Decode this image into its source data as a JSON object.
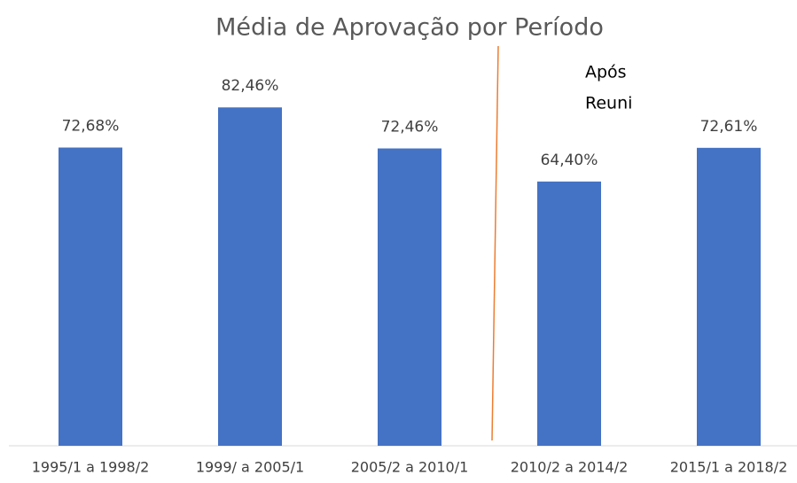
{
  "chart_data": {
    "type": "bar",
    "title": "Média de Aprovação por Período",
    "categories": [
      "1995/1 a 1998/2",
      "1999/ a 2005/1",
      "2005/2 a 2010/1",
      "2010/2 a 2014/2",
      "2015/1 a 2018/2"
    ],
    "values": [
      72.68,
      82.46,
      72.46,
      64.4,
      72.61
    ],
    "value_labels": [
      "72,68%",
      "82,46%",
      "72,46%",
      "64,40%",
      "72,61%"
    ],
    "color": "#4472c4",
    "ylim": [
      0,
      100
    ],
    "annotation": [
      "Após",
      "Reuni"
    ]
  }
}
